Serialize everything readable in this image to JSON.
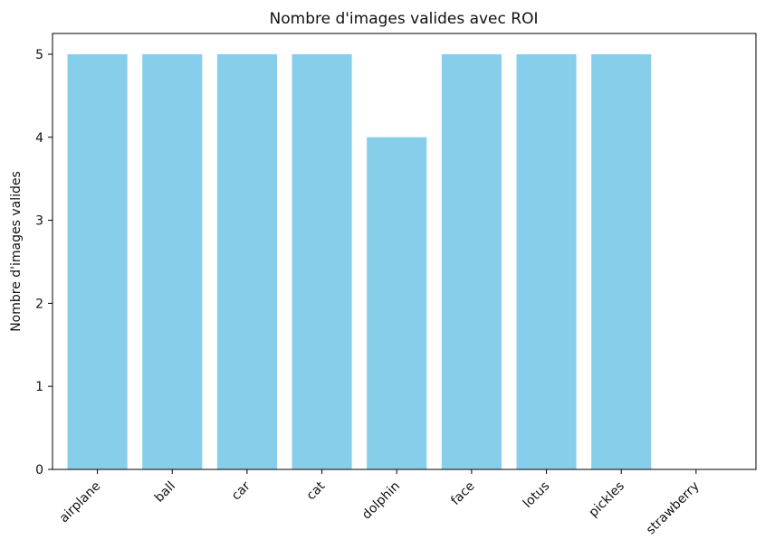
{
  "chart_data": {
    "type": "bar",
    "title": "Nombre d'images valides avec ROI",
    "xlabel": "",
    "ylabel": "Nombre d'images valides",
    "categories": [
      "airplane",
      "ball",
      "car",
      "cat",
      "dolphin",
      "face",
      "lotus",
      "pickles",
      "strawberry"
    ],
    "values": [
      5,
      5,
      5,
      5,
      4,
      5,
      5,
      5,
      0
    ],
    "ylim": [
      0,
      5.25
    ],
    "yticks": [
      0,
      1,
      2,
      3,
      4,
      5
    ],
    "bar_color": "#87CEEB",
    "grid": false,
    "legend": "none",
    "xtick_rotation": "45deg"
  }
}
